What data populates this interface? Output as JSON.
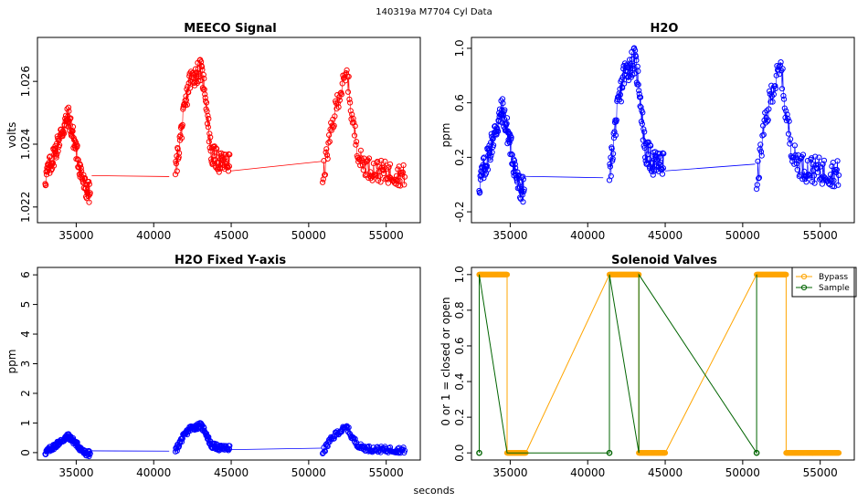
{
  "figure": {
    "suptitle": "140319a    M7704   Cyl Data",
    "xlabel": "seconds"
  },
  "colors": {
    "red": "#ff0000",
    "blue": "#0000ff",
    "orange": "#ffa500",
    "green": "#006400"
  },
  "chart_data": [
    {
      "id": "meeco",
      "type": "scatter",
      "title": "MEECO Signal",
      "xlabel": "",
      "ylabel": "volts",
      "xlim": [
        32500,
        57200
      ],
      "ylim": [
        1.0215,
        1.0274
      ],
      "xticks": [
        35000,
        40000,
        45000,
        50000,
        55000
      ],
      "xtick_labels": [
        "35000",
        "40000",
        "45000",
        "50000",
        "55000"
      ],
      "yticks": [
        1.022,
        1.024,
        1.026
      ],
      "ytick_labels": [
        "1.022",
        "1.024",
        "1.026"
      ],
      "color": "red",
      "series": [
        {
          "name": "MEECO",
          "segments": [
            {
              "x": [
                33000,
                33600,
                34000,
                34500,
                35000,
                35500,
                35900
              ],
              "y": [
                1.0229,
                1.0237,
                1.0243,
                1.0249,
                1.0238,
                1.0227,
                1.0224
              ]
            },
            {
              "x": [
                41400,
                41800,
                42300,
                43000,
                43300,
                43700,
                44300,
                44900
              ],
              "y": [
                1.0231,
                1.0245,
                1.026,
                1.0264,
                1.0258,
                1.0237,
                1.0234,
                1.0234
              ]
            },
            {
              "x": [
                50900,
                51300,
                51900,
                52500,
                52800,
                53300,
                54000,
                55000,
                56200
              ],
              "y": [
                1.0229,
                1.024,
                1.0255,
                1.0262,
                1.0248,
                1.0235,
                1.0232,
                1.0231,
                1.023
              ]
            }
          ],
          "gaps": [
            {
              "x": [
                36000,
                41000
              ],
              "y": [
                1.023,
                1.02297
              ]
            },
            {
              "x": [
                45000,
                50800
              ],
              "y": [
                1.02315,
                1.02345
              ]
            }
          ],
          "noise": 0.0007,
          "points_per_segment": 130
        }
      ]
    },
    {
      "id": "h2o",
      "type": "scatter",
      "title": "H2O",
      "xlabel": "",
      "ylabel": "ppm",
      "xlim": [
        32500,
        57200
      ],
      "ylim": [
        -0.28,
        1.08
      ],
      "xticks": [
        35000,
        40000,
        45000,
        50000,
        55000
      ],
      "xtick_labels": [
        "35000",
        "40000",
        "45000",
        "50000",
        "55000"
      ],
      "yticks": [
        -0.2,
        0.2,
        0.6,
        1.0
      ],
      "ytick_labels": [
        "-0.2",
        "0.2",
        "0.6",
        "1.0"
      ],
      "color": "blue",
      "series": [
        {
          "name": "H2O",
          "segments": [
            {
              "x": [
                33000,
                33600,
                34000,
                34500,
                35000,
                35500,
                35900
              ],
              "y": [
                0.0,
                0.22,
                0.38,
                0.55,
                0.3,
                0.0,
                -0.05
              ]
            },
            {
              "x": [
                41400,
                41800,
                42300,
                43000,
                43300,
                43700,
                44300,
                44900
              ],
              "y": [
                0.05,
                0.45,
                0.8,
                0.92,
                0.75,
                0.25,
                0.15,
                0.15
              ]
            },
            {
              "x": [
                50900,
                51300,
                51900,
                52500,
                52800,
                53300,
                54000,
                55000,
                56200
              ],
              "y": [
                0.0,
                0.35,
                0.7,
                0.85,
                0.5,
                0.2,
                0.12,
                0.1,
                0.08
              ]
            }
          ],
          "gaps": [
            {
              "x": [
                36000,
                41000
              ],
              "y": [
                0.06,
                0.05
              ]
            },
            {
              "x": [
                45000,
                50800
              ],
              "y": [
                0.1,
                0.15
              ]
            }
          ],
          "noise": 0.2,
          "points_per_segment": 130
        }
      ]
    },
    {
      "id": "h2o-fixed",
      "type": "scatter",
      "title": "H2O Fixed Y-axis",
      "xlabel": "",
      "ylabel": "ppm",
      "xlim": [
        32500,
        57200
      ],
      "ylim": [
        -0.25,
        6.25
      ],
      "xticks": [
        35000,
        40000,
        45000,
        50000,
        55000
      ],
      "xtick_labels": [
        "35000",
        "40000",
        "45000",
        "50000",
        "55000"
      ],
      "yticks": [
        0,
        1,
        2,
        3,
        4,
        5,
        6
      ],
      "ytick_labels": [
        "0",
        "1",
        "2",
        "3",
        "4",
        "5",
        "6"
      ],
      "color": "blue",
      "series": [
        {
          "name": "H2O",
          "segments": [
            {
              "x": [
                33000,
                33600,
                34000,
                34500,
                35000,
                35500,
                35900
              ],
              "y": [
                0.0,
                0.22,
                0.38,
                0.55,
                0.3,
                0.0,
                -0.05
              ]
            },
            {
              "x": [
                41400,
                41800,
                42300,
                43000,
                43300,
                43700,
                44300,
                44900
              ],
              "y": [
                0.05,
                0.45,
                0.8,
                0.92,
                0.75,
                0.25,
                0.15,
                0.15
              ]
            },
            {
              "x": [
                50900,
                51300,
                51900,
                52500,
                52800,
                53300,
                54000,
                55000,
                56200
              ],
              "y": [
                0.0,
                0.35,
                0.7,
                0.85,
                0.5,
                0.2,
                0.12,
                0.1,
                0.08
              ]
            }
          ],
          "gaps": [
            {
              "x": [
                36000,
                41000
              ],
              "y": [
                0.06,
                0.05
              ]
            },
            {
              "x": [
                45000,
                50800
              ],
              "y": [
                0.1,
                0.15
              ]
            }
          ],
          "noise": 0.2,
          "points_per_segment": 130
        }
      ]
    },
    {
      "id": "valves",
      "type": "line",
      "title": "Solenoid Valves",
      "xlabel": "",
      "ylabel": "0 or 1 = closed or open",
      "xlim": [
        32500,
        57200
      ],
      "ylim": [
        -0.04,
        1.04
      ],
      "xticks": [
        35000,
        40000,
        45000,
        50000,
        55000
      ],
      "xtick_labels": [
        "35000",
        "40000",
        "45000",
        "50000",
        "55000"
      ],
      "yticks": [
        0,
        0.2,
        0.4,
        0.6,
        0.8,
        1.0
      ],
      "ytick_labels": [
        "0.0",
        "0.2",
        "0.4",
        "0.6",
        "0.8",
        "1.0"
      ],
      "legend": {
        "placement": "top-right",
        "entries": [
          "Bypass",
          "Sample"
        ]
      },
      "series": [
        {
          "name": "Bypass",
          "color": "orange",
          "line": {
            "x": [
              33000,
              34800,
              34800,
              36000,
              41400,
              43300,
              43300,
              45000,
              50900,
              52800,
              52800,
              56200
            ],
            "y": [
              1,
              1,
              0,
              0,
              1,
              1,
              0,
              0,
              1,
              1,
              0,
              0
            ]
          },
          "dense_runs": [
            {
              "x": [
                33000,
                34800
              ],
              "y": 1
            },
            {
              "x": [
                34800,
                36000
              ],
              "y": 0
            },
            {
              "x": [
                41400,
                43300
              ],
              "y": 1
            },
            {
              "x": [
                43300,
                45000
              ],
              "y": 0
            },
            {
              "x": [
                50900,
                52800
              ],
              "y": 1
            },
            {
              "x": [
                52800,
                56200
              ],
              "y": 0
            }
          ],
          "points_per_unit": 0.035
        },
        {
          "name": "Sample",
          "color": "green",
          "line": {
            "x": [
              33000,
              33000,
              34800,
              41400,
              41400,
              43300,
              43300,
              50900,
              50900
            ],
            "y": [
              0,
              1,
              0,
              0,
              1,
              0,
              1,
              0,
              1
            ]
          },
          "points": {
            "x": [
              33000,
              41400,
              50900
            ],
            "y": [
              0,
              0,
              0
            ]
          }
        }
      ]
    }
  ]
}
